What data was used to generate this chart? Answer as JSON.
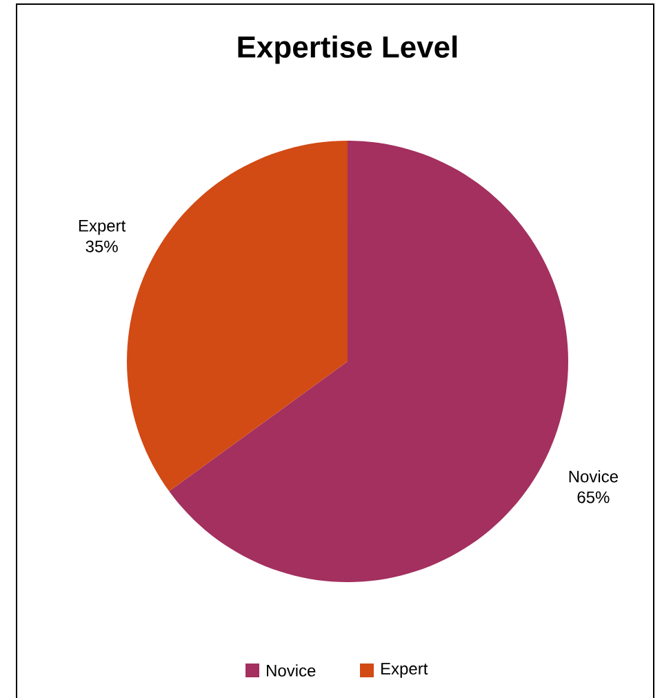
{
  "chart_data": {
    "type": "pie",
    "title": "Expertise Level",
    "categories": [
      "Novice",
      "Expert"
    ],
    "values": [
      65,
      35
    ],
    "colors": [
      "#a3305f",
      "#d24a14"
    ],
    "value_labels": [
      "65%",
      "35%"
    ],
    "legend": "bottom"
  }
}
